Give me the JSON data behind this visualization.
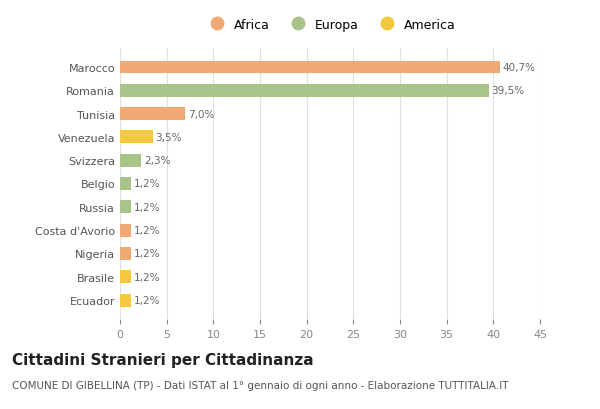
{
  "categories": [
    "Marocco",
    "Romania",
    "Tunisia",
    "Venezuela",
    "Svizzera",
    "Belgio",
    "Russia",
    "Costa d'Avorio",
    "Nigeria",
    "Brasile",
    "Ecuador"
  ],
  "values": [
    40.7,
    39.5,
    7.0,
    3.5,
    2.3,
    1.2,
    1.2,
    1.2,
    1.2,
    1.2,
    1.2
  ],
  "labels": [
    "40,7%",
    "39,5%",
    "7,0%",
    "3,5%",
    "2,3%",
    "1,2%",
    "1,2%",
    "1,2%",
    "1,2%",
    "1,2%",
    "1,2%"
  ],
  "colors": [
    "#F0A875",
    "#A8C48A",
    "#F0A875",
    "#F5C842",
    "#A8C48A",
    "#A8C48A",
    "#A8C48A",
    "#F0A875",
    "#F0A875",
    "#F5C842",
    "#F5C842"
  ],
  "legend_labels": [
    "Africa",
    "Europa",
    "America"
  ],
  "legend_colors": [
    "#F0A875",
    "#A8C48A",
    "#F5C842"
  ],
  "title": "Cittadini Stranieri per Cittadinanza",
  "subtitle": "COMUNE DI GIBELLINA (TP) - Dati ISTAT al 1° gennaio di ogni anno - Elaborazione TUTTITALIA.IT",
  "xlim": [
    0,
    45
  ],
  "xticks": [
    0,
    5,
    10,
    15,
    20,
    25,
    30,
    35,
    40,
    45
  ],
  "bg_color": "#ffffff",
  "grid_color": "#e0e0e0",
  "bar_height": 0.55,
  "title_fontsize": 11,
  "subtitle_fontsize": 7.5,
  "label_fontsize": 7.5,
  "tick_fontsize": 8,
  "legend_fontsize": 9
}
